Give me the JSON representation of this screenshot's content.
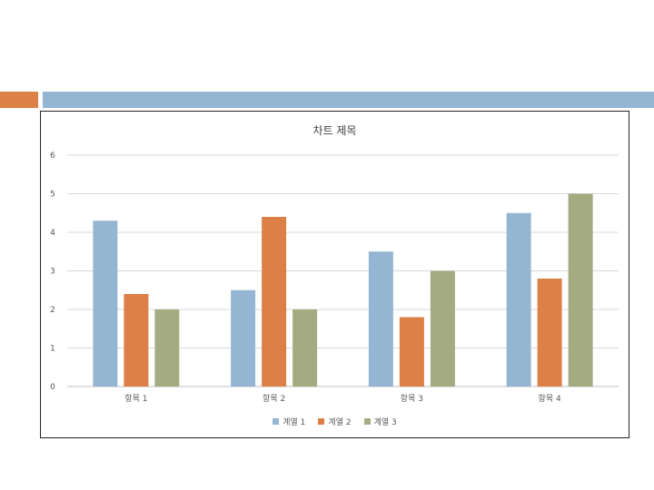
{
  "slide": {
    "accent_colors": {
      "block": "#dd8047",
      "bar": "#94b6d2"
    }
  },
  "chart_data": {
    "type": "bar",
    "title": "차트 제목",
    "categories": [
      "항목 1",
      "항목 2",
      "항목 3",
      "항목 4"
    ],
    "series": [
      {
        "name": "계열 1",
        "color": "#94b6d2",
        "values": [
          4.3,
          2.5,
          3.5,
          4.5
        ]
      },
      {
        "name": "계열 2",
        "color": "#dd8047",
        "values": [
          2.4,
          4.4,
          1.8,
          2.8
        ]
      },
      {
        "name": "계열 3",
        "color": "#a5ab81",
        "values": [
          2,
          2,
          3,
          5
        ]
      }
    ],
    "ylim": [
      0,
      6
    ],
    "yticks": [
      "0",
      "1",
      "2",
      "3",
      "4",
      "5",
      "6"
    ],
    "grid": true,
    "legend_position": "bottom"
  }
}
